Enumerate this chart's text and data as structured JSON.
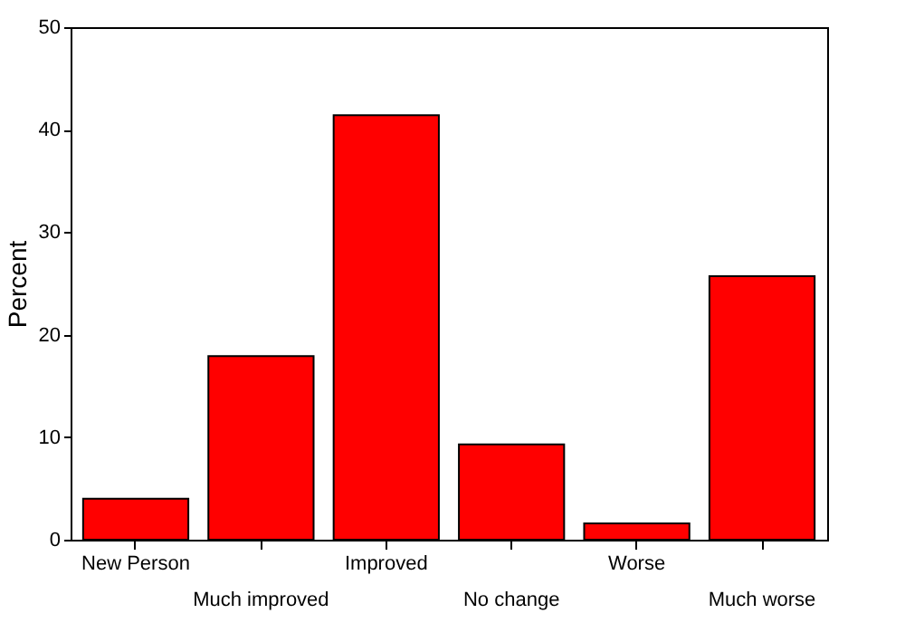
{
  "chart_data": {
    "type": "bar",
    "ylabel": "Percent",
    "categories": [
      "New Person",
      "Much improved",
      "Improved",
      "No change",
      "Worse",
      "Much worse"
    ],
    "values": [
      4.0,
      17.9,
      41.4,
      9.3,
      1.6,
      25.7
    ],
    "color": "#ff0000",
    "ylim": [
      0,
      50
    ],
    "yticks": [
      0,
      10,
      20,
      30,
      40,
      50
    ],
    "grid": false
  }
}
